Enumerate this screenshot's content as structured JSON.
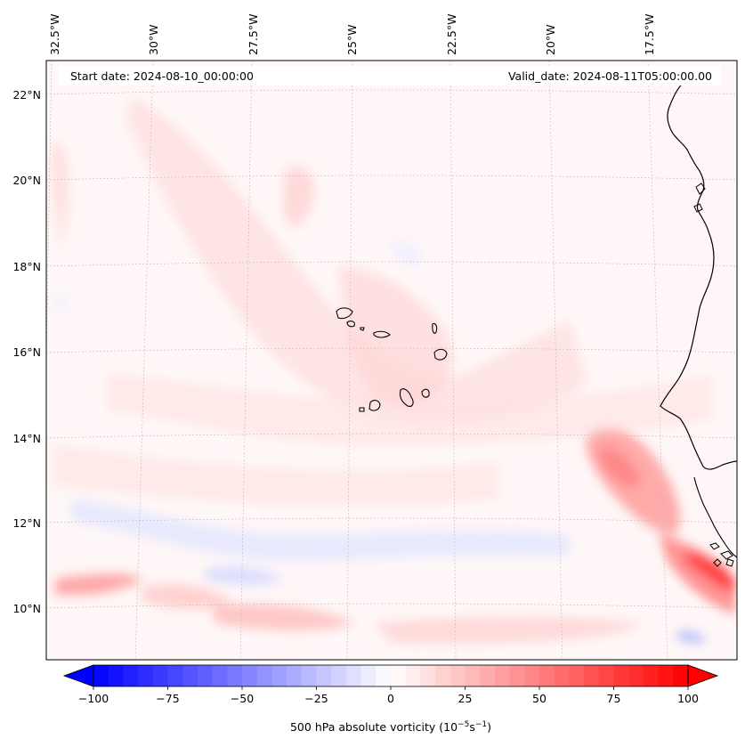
{
  "header": {
    "start_date": "Start date: 2024-08-10_00:00:00",
    "valid_date": "Valid_date: 2024-08-11T05:00:00.00"
  },
  "axes": {
    "lon_labels": [
      "32.5°W",
      "30°W",
      "27.5°W",
      "25°W",
      "22.5°W",
      "20°W",
      "17.5°W"
    ],
    "lat_labels": [
      "22°N",
      "20°N",
      "18°N",
      "16°N",
      "14°N",
      "12°N",
      "10°N"
    ]
  },
  "colorbar": {
    "label_prefix": "500 hPa absolute vorticity (10",
    "label_exp1": "−5",
    "label_mid": "s",
    "label_exp2": "−1",
    "label_suffix": ")",
    "ticks": [
      "−100",
      "−75",
      "−50",
      "−25",
      "0",
      "25",
      "50",
      "75",
      "100"
    ],
    "tick_values": [
      -100,
      -75,
      -50,
      -25,
      0,
      25,
      50,
      75,
      100
    ],
    "vmin": -100,
    "vmax": 100,
    "levels": 41,
    "cmap": "bwr"
  },
  "colors": {
    "background": "#ffffff",
    "map_fill": "#fff7f7",
    "coast": "#000000",
    "grid": "#bdbdbd"
  }
}
